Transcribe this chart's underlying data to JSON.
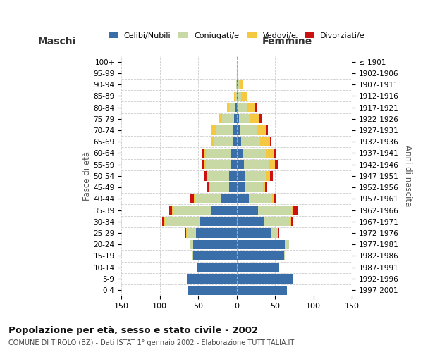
{
  "age_groups": [
    "100+",
    "95-99",
    "90-94",
    "85-89",
    "80-84",
    "75-79",
    "70-74",
    "65-69",
    "60-64",
    "55-59",
    "50-54",
    "45-49",
    "40-44",
    "35-39",
    "30-34",
    "25-29",
    "20-24",
    "15-19",
    "10-14",
    "5-9",
    "0-4"
  ],
  "birth_years": [
    "≤ 1901",
    "1902-1906",
    "1907-1911",
    "1912-1916",
    "1917-1921",
    "1922-1926",
    "1927-1931",
    "1932-1936",
    "1937-1941",
    "1942-1946",
    "1947-1951",
    "1952-1956",
    "1957-1961",
    "1962-1966",
    "1967-1971",
    "1972-1976",
    "1977-1981",
    "1982-1986",
    "1987-1991",
    "1992-1996",
    "1997-2001"
  ],
  "male": {
    "celibe": [
      0,
      0,
      0,
      0,
      2,
      3,
      5,
      5,
      8,
      8,
      10,
      10,
      20,
      33,
      48,
      53,
      57,
      57,
      52,
      65,
      63
    ],
    "coniugato": [
      0,
      0,
      1,
      2,
      8,
      16,
      22,
      25,
      32,
      32,
      28,
      25,
      35,
      50,
      45,
      12,
      4,
      1,
      0,
      0,
      0
    ],
    "vedovo": [
      0,
      0,
      0,
      1,
      3,
      4,
      6,
      3,
      3,
      2,
      1,
      1,
      1,
      1,
      1,
      1,
      0,
      0,
      0,
      0,
      0
    ],
    "divorziato": [
      0,
      0,
      0,
      0,
      0,
      1,
      1,
      0,
      2,
      3,
      3,
      2,
      4,
      4,
      3,
      1,
      0,
      0,
      0,
      0,
      0
    ]
  },
  "female": {
    "nubile": [
      0,
      0,
      1,
      1,
      2,
      3,
      5,
      6,
      8,
      9,
      10,
      10,
      16,
      28,
      35,
      44,
      63,
      62,
      55,
      73,
      65
    ],
    "coniugata": [
      0,
      1,
      3,
      5,
      12,
      14,
      22,
      25,
      30,
      33,
      28,
      24,
      30,
      44,
      35,
      10,
      5,
      1,
      0,
      0,
      0
    ],
    "vedova": [
      0,
      0,
      4,
      7,
      10,
      12,
      12,
      12,
      10,
      8,
      5,
      3,
      2,
      2,
      1,
      0,
      0,
      0,
      0,
      0,
      0
    ],
    "divorziata": [
      0,
      0,
      0,
      1,
      2,
      3,
      2,
      2,
      3,
      4,
      4,
      3,
      4,
      5,
      3,
      1,
      0,
      0,
      0,
      0,
      0
    ]
  },
  "colors": {
    "celibe": "#3a6ea8",
    "coniugato": "#c8d9a5",
    "vedovo": "#f5c842",
    "divorziato": "#cc1111"
  },
  "title": "Popolazione per età, sesso e stato civile - 2002",
  "subtitle": "COMUNE DI TIROLO (BZ) - Dati ISTAT 1° gennaio 2002 - Elaborazione TUTTITALIA.IT",
  "xlabel_left": "Maschi",
  "xlabel_right": "Femmine",
  "ylabel_left": "Fasce di età",
  "ylabel_right": "Anni di nascita",
  "legend_labels": [
    "Celibi/Nubili",
    "Coniugati/e",
    "Vedovi/e",
    "Divorziati/e"
  ],
  "xlim": 150,
  "background_color": "#ffffff",
  "grid_color": "#cccccc"
}
